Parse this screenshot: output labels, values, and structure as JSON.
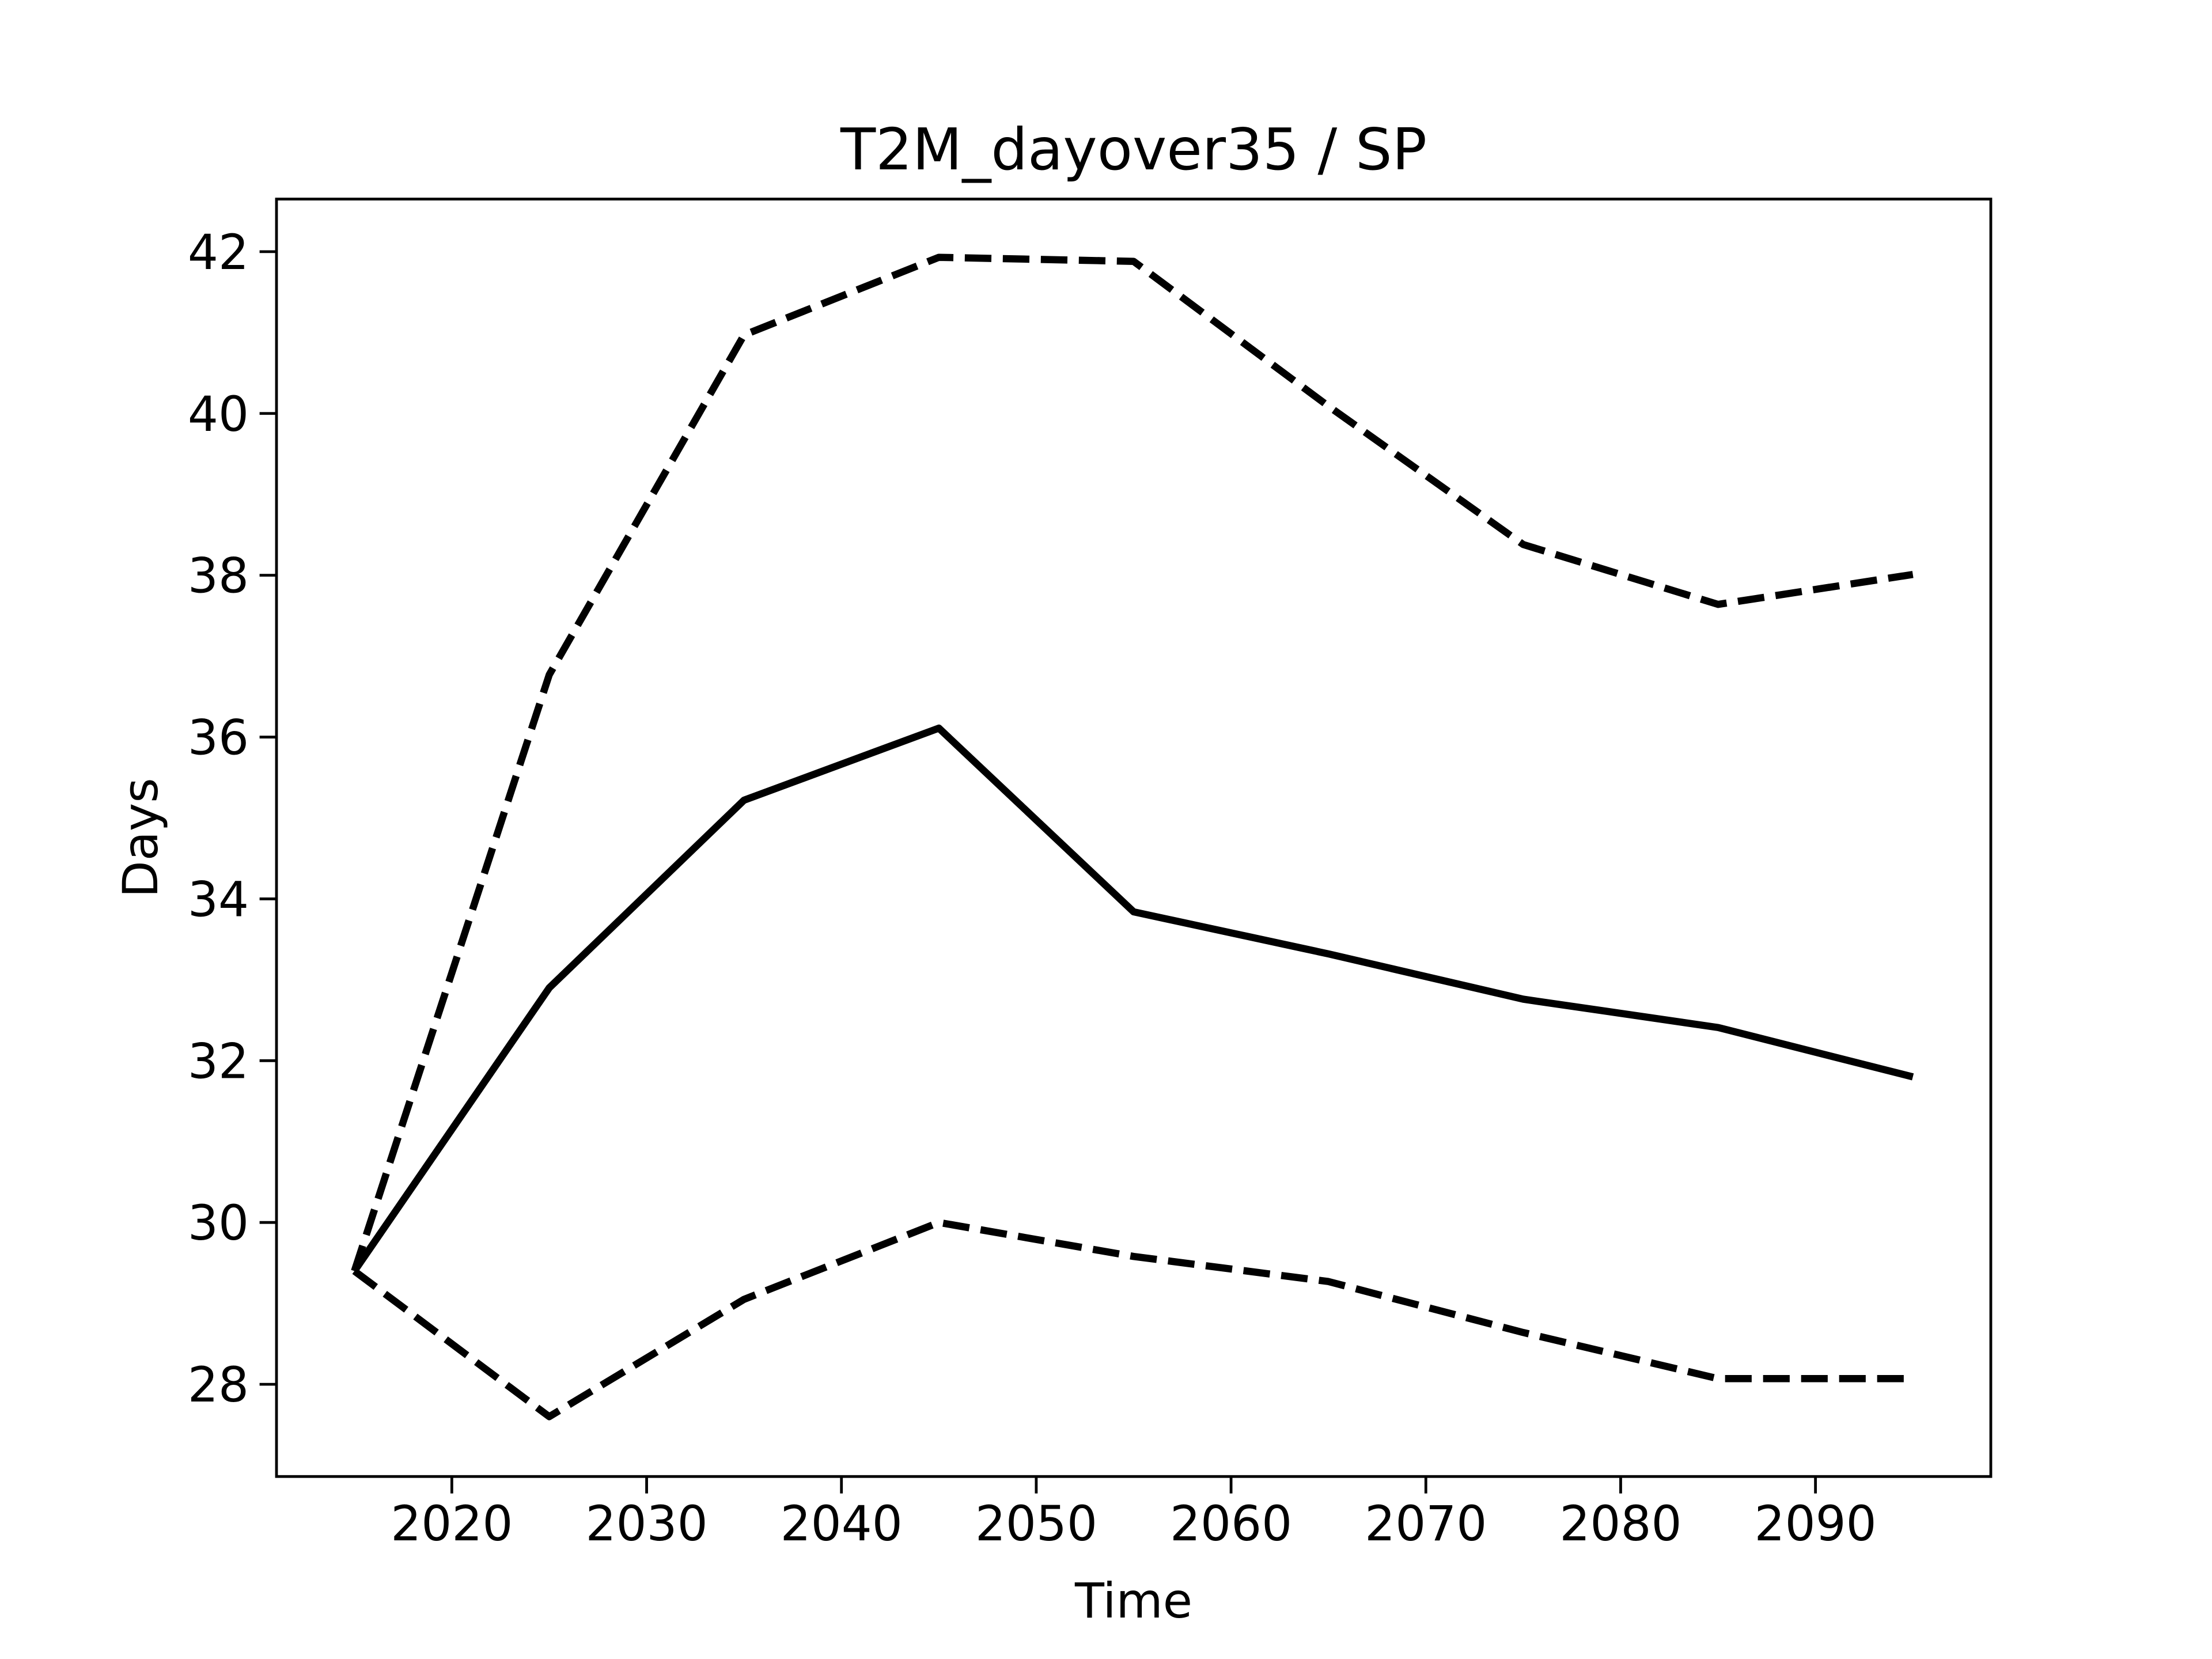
{
  "chart_data": {
    "type": "line",
    "title": "T2M_dayover35 / SP",
    "xlabel": "Time",
    "ylabel": "Days",
    "x": [
      2015,
      2025,
      2035,
      2045,
      2055,
      2065,
      2075,
      2085,
      2095
    ],
    "series": [
      {
        "color": "#000000",
        "linestyle": "solid",
        "values": [
          29.4,
          32.9,
          35.22,
          36.11,
          33.84,
          33.32,
          32.76,
          32.41,
          31.8
        ]
      },
      {
        "color": "#000000",
        "linestyle": "dashed",
        "values": [
          29.4,
          36.77,
          40.97,
          41.93,
          41.88,
          40.09,
          38.38,
          37.64,
          38.01
        ]
      },
      {
        "color": "#000000",
        "linestyle": "dashed",
        "values": [
          29.4,
          27.6,
          29.05,
          30.0,
          29.58,
          29.27,
          28.64,
          28.07,
          28.07
        ]
      }
    ],
    "xlim": [
      2011,
      2099
    ],
    "xticks": [
      2020,
      2030,
      2040,
      2050,
      2060,
      2070,
      2080,
      2090
    ],
    "ylim": [
      26.86,
      42.65
    ],
    "yticks": [
      28,
      30,
      32,
      34,
      36,
      38,
      40,
      42
    ],
    "grid": false
  }
}
